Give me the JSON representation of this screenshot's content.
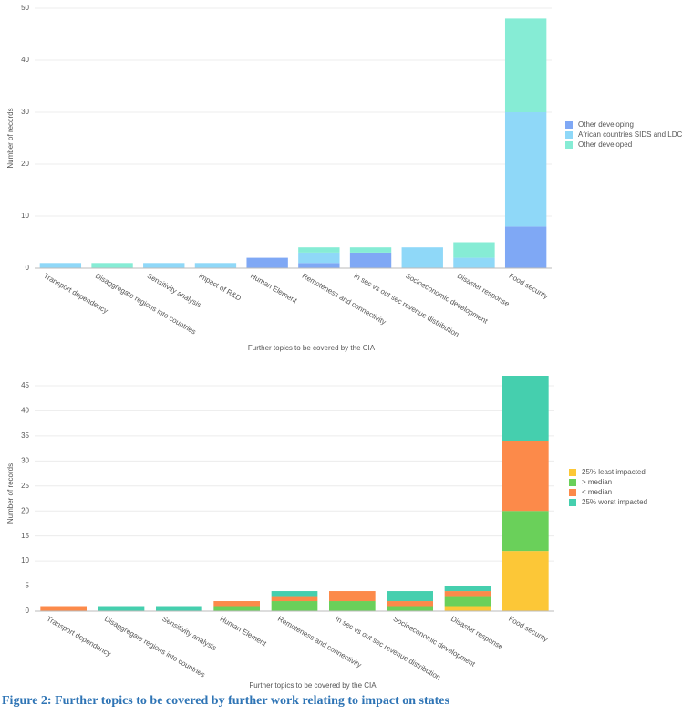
{
  "chart_data": [
    {
      "type": "bar",
      "stacked": true,
      "xlabel": "Further topics to be covered by the CIA",
      "ylabel": "Number of records",
      "categories": [
        "Transport dependency",
        "Disaggregate regions into countries",
        "Sensitivity analysis",
        "Impact of R&D",
        "Human Element",
        "Remoteness and connectivity",
        "In sec vs out sec revenue distribution",
        "Socioeconomic development",
        "Disaster response",
        "Food security"
      ],
      "series": [
        {
          "name": "Other developing",
          "color": "#7fa8f5",
          "values": [
            0,
            0,
            0,
            0,
            2,
            1,
            3,
            0,
            0,
            8
          ]
        },
        {
          "name": "African countries SIDS and LDCs",
          "color": "#8fd8f8",
          "values": [
            1,
            0,
            1,
            1,
            0,
            2,
            0,
            4,
            2,
            22
          ]
        },
        {
          "name": "Other developed",
          "color": "#86ecd5",
          "values": [
            0,
            1,
            0,
            0,
            0,
            1,
            1,
            0,
            3,
            18
          ]
        }
      ],
      "ylim": [
        0,
        50
      ],
      "yticks": [
        0,
        10,
        20,
        30,
        40,
        50
      ],
      "grid": true,
      "legend": "right"
    },
    {
      "type": "bar",
      "stacked": true,
      "xlabel": "Further topics to be covered by the CIA",
      "ylabel": "Number of records",
      "categories": [
        "Transport dependency",
        "Disaggregate regions into countries",
        "Sensitivity analysis",
        "Human Element",
        "Remoteness and connectivity",
        "In sec vs out sec revenue distribution",
        "Socioeconomic development",
        "Disaster response",
        "Food security"
      ],
      "series": [
        {
          "name": "25% least impacted",
          "color": "#fcc737",
          "values": [
            0,
            0,
            0,
            0,
            0,
            0,
            0,
            1,
            12
          ]
        },
        {
          "name": "> median",
          "color": "#6ad05a",
          "values": [
            0,
            0,
            0,
            1,
            2,
            2,
            1,
            2,
            8
          ]
        },
        {
          "name": "< median",
          "color": "#fc8a4a",
          "values": [
            1,
            0,
            0,
            1,
            1,
            2,
            1,
            1,
            14
          ]
        },
        {
          "name": "25% worst impacted",
          "color": "#45cfae",
          "values": [
            0,
            1,
            1,
            0,
            1,
            0,
            2,
            1,
            13
          ]
        }
      ],
      "ylim": [
        0,
        47
      ],
      "yticks": [
        0,
        5,
        10,
        15,
        20,
        25,
        30,
        35,
        40,
        45
      ],
      "grid": true,
      "legend": "right"
    }
  ],
  "caption": "Figure 2: Further topics to be covered by further work relating to impact on states"
}
